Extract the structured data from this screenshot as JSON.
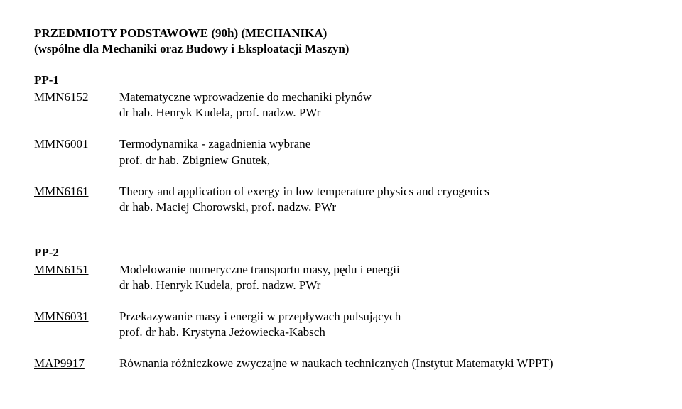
{
  "header": {
    "title": "PRZEDMIOTY PODSTAWOWE (90h) (MECHANIKA)",
    "subtitle": "(wspólne dla Mechaniki oraz Budowy i Eksploatacji Maszyn)"
  },
  "sections": {
    "pp1": {
      "label": "PP-1",
      "items": [
        {
          "code": "MMN6152",
          "underline": true,
          "line1": "Matematyczne wprowadzenie do mechaniki płynów",
          "line2": "dr hab. Henryk Kudela, prof. nadzw. PWr"
        },
        {
          "code": "MMN6001",
          "underline": false,
          "line1": "Termodynamika - zagadnienia wybrane",
          "line2": "prof. dr hab. Zbigniew Gnutek,"
        },
        {
          "code": "MMN6161",
          "underline": true,
          "line1": "Theory and application of exergy in low temperature physics and cryogenics",
          "line2": "dr hab. Maciej Chorowski, prof. nadzw. PWr"
        }
      ]
    },
    "pp2": {
      "label": "PP-2",
      "items": [
        {
          "code": "MMN6151",
          "underline": true,
          "line1": "Modelowanie numeryczne transportu masy, pędu i energii",
          "line2": "dr hab. Henryk Kudela, prof. nadzw. PWr"
        },
        {
          "code": "MMN6031",
          "underline": true,
          "line1": "Przekazywanie masy i energii w przepływach pulsujących",
          "line2": "prof. dr hab. Krystyna Jeżowiecka-Kabsch"
        },
        {
          "code": "MAP9917",
          "underline": true,
          "line1": "Równania różniczkowe zwyczajne w naukach technicznych (Instytut Matematyki WPPT)",
          "line2": ""
        }
      ]
    }
  }
}
